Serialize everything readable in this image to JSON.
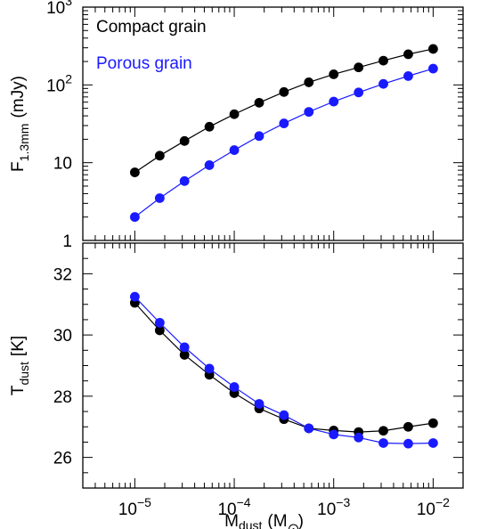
{
  "chart_data": [
    {
      "type": "line",
      "x_scale": "log",
      "y_scale": "log",
      "xlim": [
        3e-06,
        0.02
      ],
      "ylim": [
        1,
        1000
      ],
      "x": [
        1e-05,
        1.78e-05,
        3.16e-05,
        5.62e-05,
        0.0001,
        0.000178,
        0.000316,
        0.000562,
        0.001,
        0.00178,
        0.00316,
        0.00562,
        0.01
      ],
      "ylabel": {
        "main": "F",
        "sub": "1.3mm",
        "unit": "(mJy)"
      },
      "y_ticks": [
        {
          "value": 1,
          "label": "1"
        },
        {
          "value": 10,
          "label": "10"
        },
        {
          "value": 100,
          "label": "10",
          "sup": "2"
        },
        {
          "value": 1000,
          "label": "10",
          "sup": "3"
        }
      ],
      "series": [
        {
          "name": "Compact grain",
          "color": "#000000",
          "values": [
            7.5,
            12.3,
            19,
            29,
            42,
            59,
            81,
            108,
            137,
            168,
            205,
            248,
            290
          ]
        },
        {
          "name": "Porous grain",
          "color": "#1a1aff",
          "values": [
            2.0,
            3.5,
            5.8,
            9.3,
            14.5,
            22,
            32,
            45,
            61,
            80,
            103,
            130,
            162
          ]
        }
      ],
      "legend_position": "top-left"
    },
    {
      "type": "line",
      "x_scale": "log",
      "y_scale": "linear",
      "xlim": [
        3e-06,
        0.02
      ],
      "ylim": [
        25,
        33
      ],
      "x": [
        1e-05,
        1.78e-05,
        3.16e-05,
        5.62e-05,
        0.0001,
        0.000178,
        0.000316,
        0.000562,
        0.001,
        0.00178,
        0.00316,
        0.00562,
        0.01
      ],
      "xlabel": {
        "main": "M",
        "sub": "dust",
        "unit_open": "(M",
        "unit_close": ")",
        "sun_symbol": "sun-symbol"
      },
      "ylabel": {
        "main": "T",
        "sub": "dust",
        "unit": "[K]"
      },
      "x_ticks": [
        {
          "value": 1e-05,
          "base": "10",
          "exp": "−5"
        },
        {
          "value": 0.0001,
          "base": "10",
          "exp": "−4"
        },
        {
          "value": 0.001,
          "base": "10",
          "exp": "−3"
        },
        {
          "value": 0.01,
          "base": "10",
          "exp": "−2"
        }
      ],
      "y_ticks": [
        {
          "value": 26,
          "label": "26"
        },
        {
          "value": 28,
          "label": "28"
        },
        {
          "value": 30,
          "label": "30"
        },
        {
          "value": 32,
          "label": "32"
        }
      ],
      "series": [
        {
          "name": "Compact grain",
          "color": "#000000",
          "values": [
            31.05,
            30.15,
            29.35,
            28.7,
            28.1,
            27.6,
            27.25,
            26.95,
            26.88,
            26.83,
            26.87,
            27.0,
            27.12
          ]
        },
        {
          "name": "Porous grain",
          "color": "#1a1aff",
          "values": [
            31.25,
            30.4,
            29.6,
            28.9,
            28.3,
            27.75,
            27.38,
            26.95,
            26.75,
            26.65,
            26.47,
            26.45,
            26.47
          ]
        }
      ]
    }
  ]
}
